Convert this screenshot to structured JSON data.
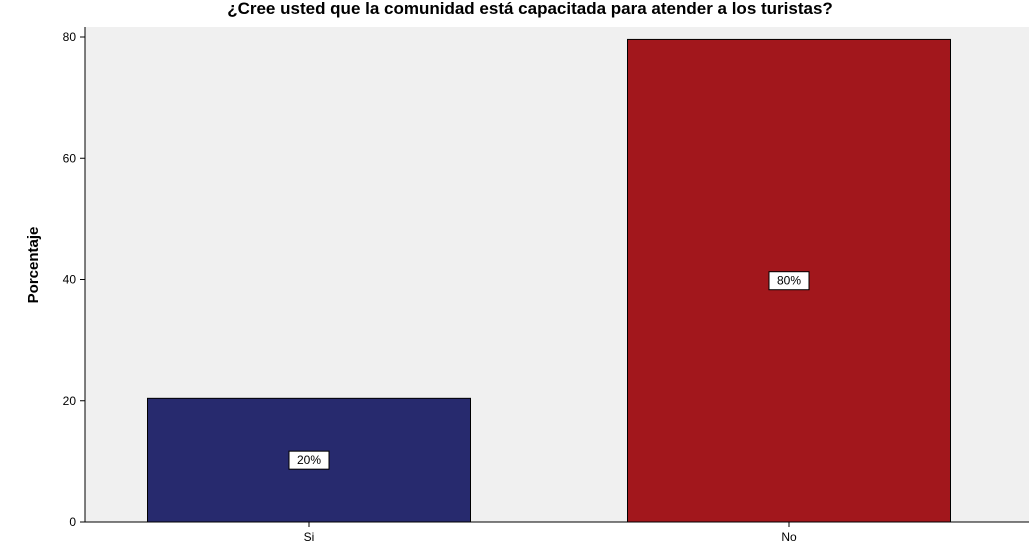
{
  "chart_data": {
    "type": "bar",
    "title": "¿Cree usted que la comunidad está capacitada para atender a los turistas?",
    "xlabel": "",
    "ylabel": "Porcentaje",
    "categories": [
      "Si",
      "No"
    ],
    "values": [
      20.4,
      79.6
    ],
    "data_labels": [
      "20%",
      "80%"
    ],
    "colors": [
      "#272a6e",
      "#a2171c"
    ],
    "plot_background": "#f0f0f0",
    "ylim": [
      0,
      80
    ],
    "yticks": [
      0,
      20,
      40,
      60,
      80
    ],
    "grid": false,
    "legend": "none"
  }
}
